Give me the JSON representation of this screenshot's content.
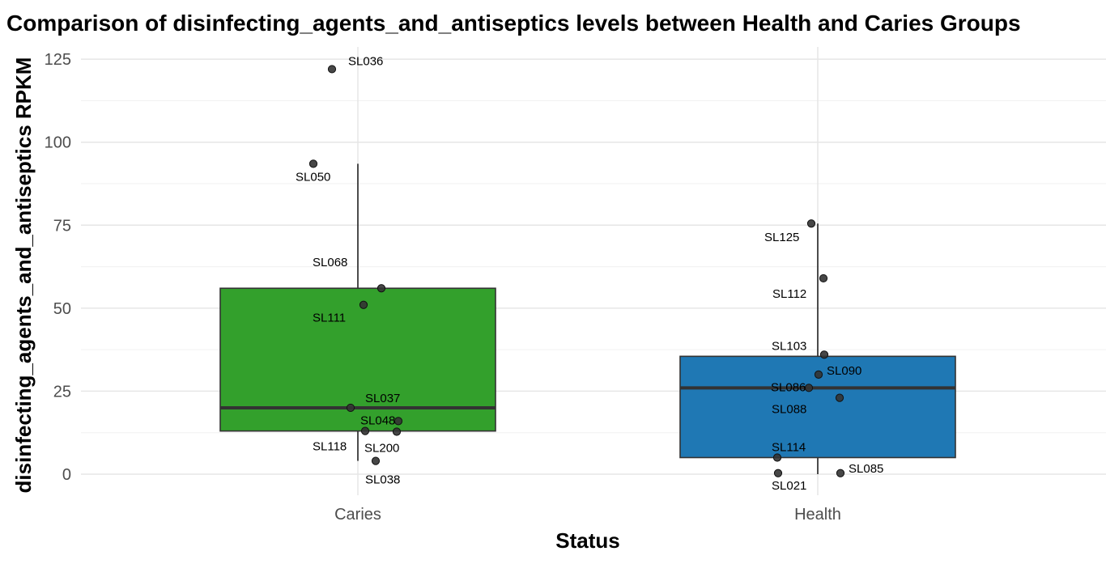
{
  "chart_data": {
    "type": "box",
    "title": "Comparison of disinfecting_agents_and_antiseptics levels between Health and Caries Groups",
    "xlabel": "Status",
    "ylabel": "disinfecting_agents_and_antiseptics RPKM",
    "ylim": [
      -6,
      128
    ],
    "yticks": [
      "0",
      "25",
      "50",
      "75",
      "100",
      "125"
    ],
    "grid": true,
    "categories": [
      "Caries",
      "Health"
    ],
    "boxes": [
      {
        "category": "Caries",
        "fill": "#33a02c",
        "q1": 13,
        "median": 20,
        "q3": 56,
        "whisker_low": 4,
        "whisker_high": 93.5,
        "points": [
          {
            "label": "SL036",
            "y": 122
          },
          {
            "label": "SL050",
            "y": 93.5
          },
          {
            "label": "SL068",
            "y": 56
          },
          {
            "label": "SL111",
            "y": 51
          },
          {
            "label": "SL037",
            "y": 20
          },
          {
            "label": "SL048",
            "y": 16
          },
          {
            "label": "SL118",
            "y": 13
          },
          {
            "label": "SL200",
            "y": 12.8
          },
          {
            "label": "SL038",
            "y": 4
          }
        ]
      },
      {
        "category": "Health",
        "fill": "#1f78b4",
        "q1": 5,
        "median": 26,
        "q3": 35.5,
        "whisker_low": 0,
        "whisker_high": 75.5,
        "points": [
          {
            "label": "SL125",
            "y": 75.5
          },
          {
            "label": "SL112",
            "y": 59
          },
          {
            "label": "SL103",
            "y": 36
          },
          {
            "label": "SL090",
            "y": 30
          },
          {
            "label": "SL086",
            "y": 26
          },
          {
            "label": "SL088",
            "y": 23
          },
          {
            "label": "SL114",
            "y": 5
          },
          {
            "label": "SL085",
            "y": 0.3
          },
          {
            "label": "SL021",
            "y": 0.3
          }
        ]
      }
    ]
  }
}
